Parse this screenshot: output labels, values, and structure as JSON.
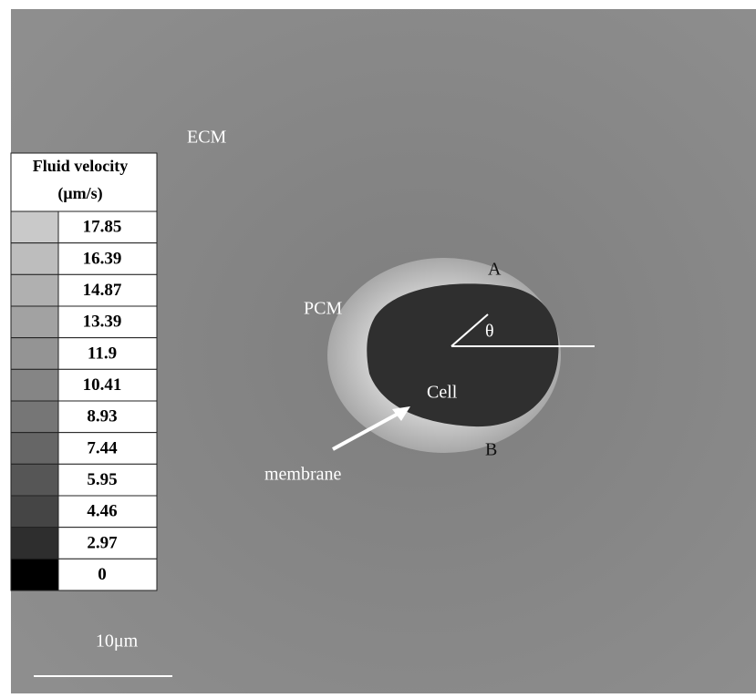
{
  "labels": {
    "ecm": "ECM",
    "pcm": "PCM",
    "a": "A",
    "b": "B",
    "theta": "θ",
    "cell": "Cell",
    "membrane": "membrane",
    "scale": "10μm"
  },
  "legend": {
    "title": "Fluid velocity",
    "unit": "(μm/s)",
    "rows": [
      {
        "value": "17.85",
        "color": "#c9c9c9"
      },
      {
        "value": "16.39",
        "color": "#bdbdbd"
      },
      {
        "value": "14.87",
        "color": "#b0b0b0"
      },
      {
        "value": "13.39",
        "color": "#a2a2a2"
      },
      {
        "value": "11.9",
        "color": "#949494"
      },
      {
        "value": "10.41",
        "color": "#858585"
      },
      {
        "value": "8.93",
        "color": "#767676"
      },
      {
        "value": "7.44",
        "color": "#666666"
      },
      {
        "value": "5.95",
        "color": "#565656"
      },
      {
        "value": "4.46",
        "color": "#454545"
      },
      {
        "value": "2.97",
        "color": "#2e2e2e"
      },
      {
        "value": "0",
        "color": "#000000"
      }
    ]
  }
}
